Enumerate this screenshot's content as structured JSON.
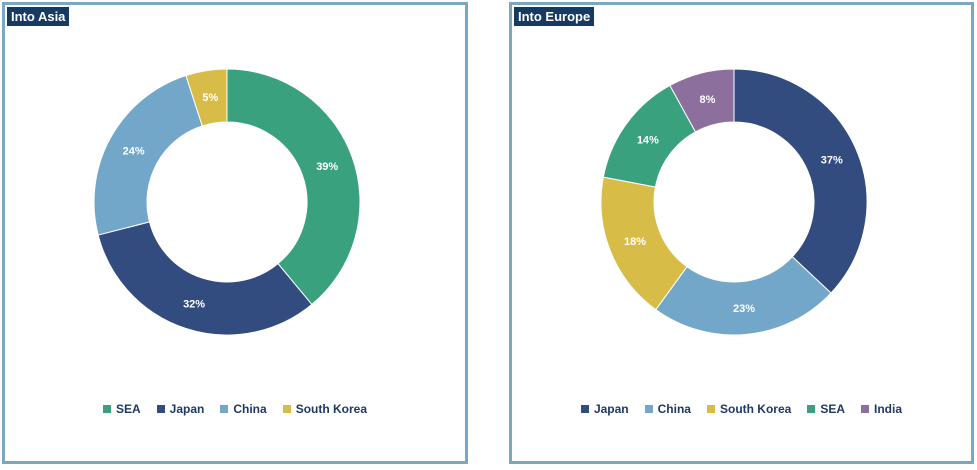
{
  "chart_data": [
    {
      "type": "pie",
      "title": "Into Asia",
      "categories": [
        "SEA",
        "Japan",
        "China",
        "South Korea"
      ],
      "values": [
        39,
        32,
        24,
        5
      ],
      "labels": [
        "39%",
        "32%",
        "24%",
        "5%"
      ],
      "colors": [
        "#3aa17e",
        "#334c80",
        "#72a7c9",
        "#d8bc48"
      ],
      "legend": "bottom",
      "donut": true
    },
    {
      "type": "pie",
      "title": "Into Europe",
      "categories": [
        "Japan",
        "China",
        "South Korea",
        "SEA",
        "India"
      ],
      "values": [
        37,
        23,
        18,
        14,
        8
      ],
      "labels": [
        "37%",
        "23%",
        "18%",
        "14%",
        "8%"
      ],
      "colors": [
        "#334c80",
        "#72a7c9",
        "#d8bc48",
        "#3aa17e",
        "#8c6f9c"
      ],
      "legend": "bottom",
      "donut": true
    }
  ]
}
